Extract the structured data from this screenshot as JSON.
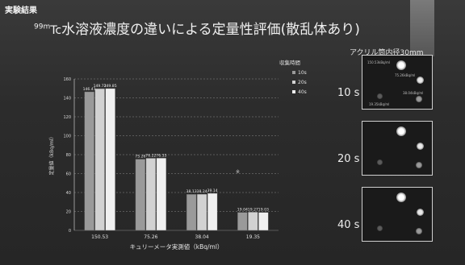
{
  "slide": {
    "corner_tag": "実験結果",
    "title_sup": "99m",
    "title_iso": "Tc",
    "title_rest": "水溶液濃度の違いによる定量性評価(散乱体あり)"
  },
  "chart_data": {
    "type": "bar",
    "title": "",
    "xlabel": "キュリーメータ実測値（kBq/ml）",
    "ylabel": "定量値（kBq/ml）",
    "ylim": [
      0,
      160
    ],
    "yticks": [
      0,
      20,
      40,
      60,
      80,
      100,
      120,
      140,
      160
    ],
    "categories": [
      "150.53",
      "75.26",
      "38.04",
      "19.35"
    ],
    "legend_title": "収集時間",
    "series": [
      {
        "name": "10s",
        "color": "#9a9a9a",
        "values": [
          146.41,
          75.26,
          38.13,
          19.04
        ],
        "labels": [
          "146.41",
          "75.26",
          "38.13",
          "19.04"
        ]
      },
      {
        "name": "20s",
        "color": "#d2d2d2",
        "values": [
          149.72,
          76.22,
          38.24,
          19.27
        ],
        "labels": [
          "149.72",
          "76.22",
          "38.24",
          "19.27"
        ]
      },
      {
        "name": "40s",
        "color": "#f0f0f0",
        "values": [
          149.85,
          76.33,
          39.14,
          19.03
        ],
        "labels": [
          "149.85",
          "76.33",
          "39.14",
          "19.03"
        ]
      }
    ],
    "annotation": "※"
  },
  "images_panel": {
    "title": "アクリル筒内径30mm",
    "rows": [
      {
        "time": "10 s",
        "labels": [
          "150.53kBq/ml",
          "75.26kBq/ml",
          "38.04kBq/ml",
          "19.35kBq/ml"
        ]
      },
      {
        "time": "20 s",
        "labels": []
      },
      {
        "time": "40 s",
        "labels": []
      }
    ]
  },
  "colors": {
    "background": "#2b2b2b",
    "text": "#f0f0f0",
    "grid": "#8a8a8a"
  }
}
